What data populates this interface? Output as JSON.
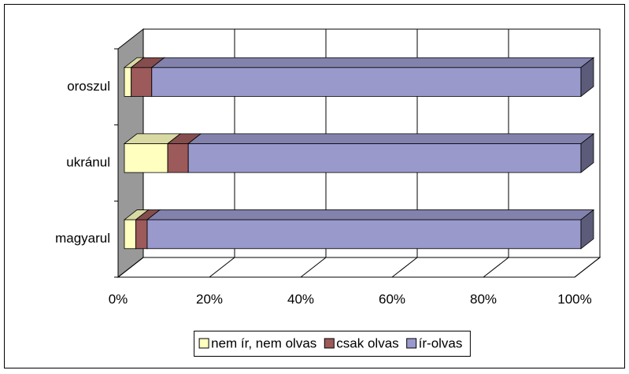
{
  "chart_data": {
    "type": "bar3d_stacked_horizontal",
    "categories": [
      "magyarul",
      "ukránul",
      "oroszul"
    ],
    "series": [
      {
        "name": "nem ír, nem olvas",
        "color": "#ffffc0",
        "values": [
          2.5,
          9.5,
          1.5
        ]
      },
      {
        "name": "csak olvas",
        "color": "#9c5a5a",
        "values": [
          2.5,
          4.5,
          4.5
        ]
      },
      {
        "name": "ír-olvas",
        "color": "#9999cc",
        "values": [
          95,
          86,
          94
        ]
      }
    ],
    "xlim": [
      0,
      100
    ],
    "xticks": [
      {
        "value": 0,
        "label": "0%"
      },
      {
        "value": 20,
        "label": "20%"
      },
      {
        "value": 40,
        "label": "40%"
      },
      {
        "value": 60,
        "label": "60%"
      },
      {
        "value": 80,
        "label": "80%"
      },
      {
        "value": 100,
        "label": "100%"
      }
    ],
    "grid": true,
    "legend": "bottom"
  }
}
